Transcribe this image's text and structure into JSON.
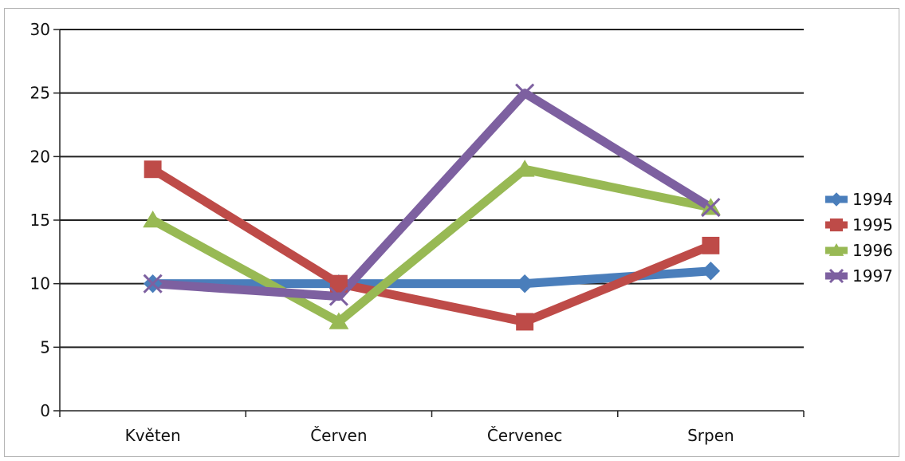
{
  "chart_data": {
    "type": "line",
    "title": "",
    "xlabel": "",
    "ylabel": "",
    "categories": [
      "Květen",
      "Červen",
      "Červenec",
      "Srpen"
    ],
    "ylim": [
      0,
      30
    ],
    "yticks": [
      0,
      5,
      10,
      15,
      20,
      25,
      30
    ],
    "grid": true,
    "legend_position": "right",
    "series": [
      {
        "name": "1994",
        "values": [
          10,
          10,
          10,
          11
        ],
        "color": "#4a7ebb",
        "marker": "diamond"
      },
      {
        "name": "1995",
        "values": [
          19,
          10,
          7,
          13
        ],
        "color": "#be4b48",
        "marker": "square"
      },
      {
        "name": "1996",
        "values": [
          15,
          7,
          19,
          16
        ],
        "color": "#98b954",
        "marker": "triangle"
      },
      {
        "name": "1997",
        "values": [
          10,
          9,
          25,
          16
        ],
        "color": "#7d60a0",
        "marker": "x"
      }
    ]
  }
}
